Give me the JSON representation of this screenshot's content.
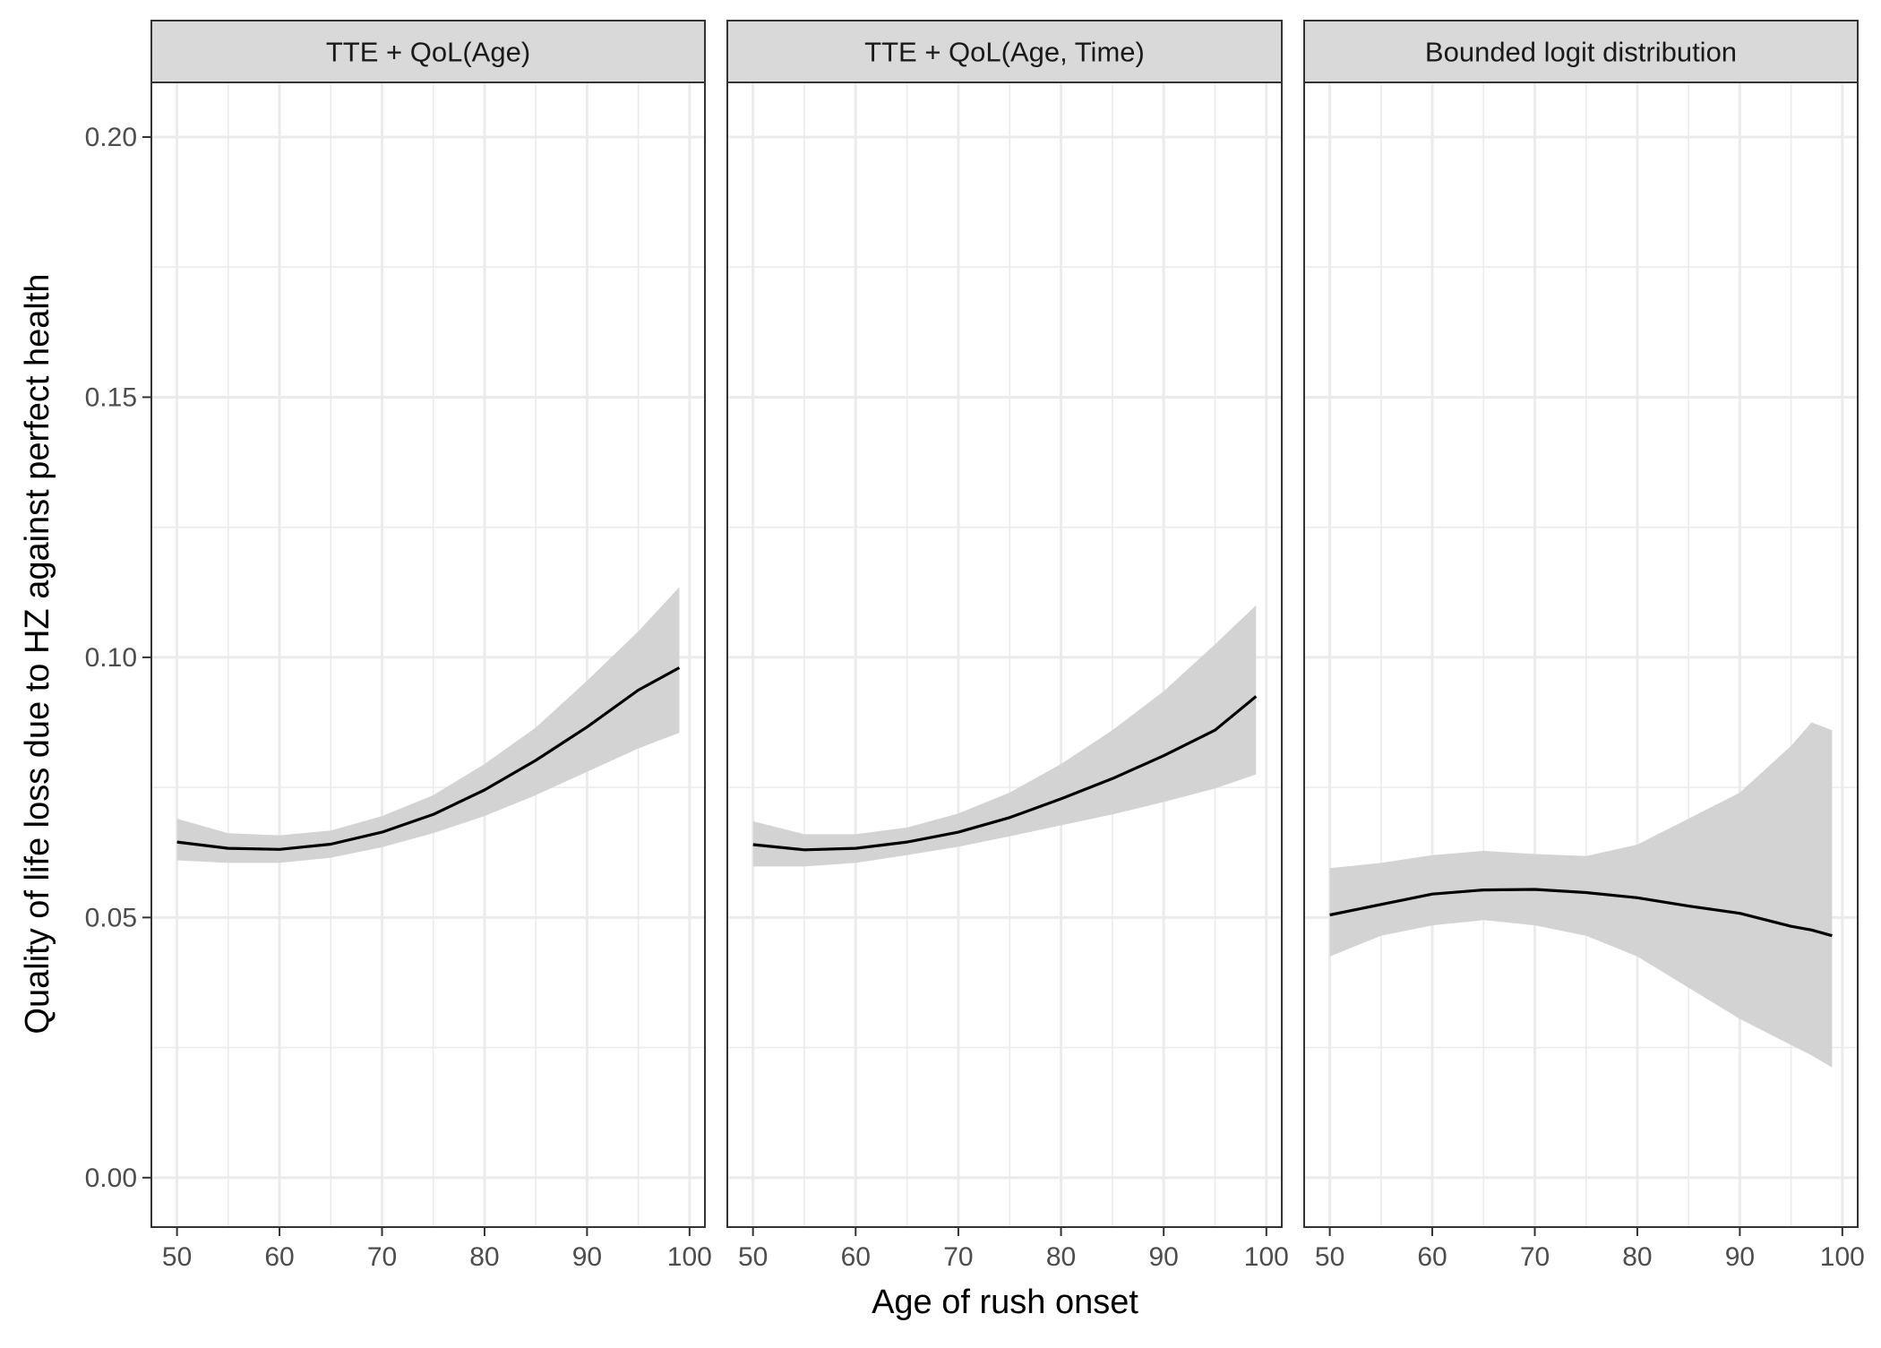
{
  "chart_data": {
    "type": "line",
    "xlabel": "Age of rush onset",
    "ylabel": "Quality of life loss due to HZ against perfect health",
    "xlim": [
      47.5,
      101.5
    ],
    "ylim": [
      -0.0095,
      0.2105
    ],
    "x_ticks": [
      50,
      60,
      70,
      80,
      90,
      100
    ],
    "x_tick_labels": [
      "50",
      "60",
      "70",
      "80",
      "90",
      "100"
    ],
    "y_ticks": [
      0.0,
      0.05,
      0.1,
      0.15,
      0.2
    ],
    "y_tick_labels": [
      "0.00",
      "0.05",
      "0.10",
      "0.15",
      "0.20"
    ],
    "grid": true,
    "colors": {
      "line": "#000000",
      "ribbon": "#d3d3d3",
      "strip": "#d9d9d9",
      "grid": "#ebebeb",
      "border": "#333333",
      "text": "#4d4d4d"
    },
    "panels": [
      {
        "strip": "TTE + QoL(Age)",
        "x": [
          50,
          55,
          60,
          65,
          70,
          75,
          80,
          85,
          90,
          95,
          99
        ],
        "y": [
          0.0645,
          0.0633,
          0.0631,
          0.0641,
          0.0664,
          0.0698,
          0.0745,
          0.0802,
          0.0866,
          0.0937,
          0.098
        ],
        "lower": [
          0.061,
          0.0605,
          0.0605,
          0.0615,
          0.0635,
          0.0662,
          0.0695,
          0.0735,
          0.078,
          0.0825,
          0.0855
        ],
        "upper": [
          0.069,
          0.0662,
          0.0658,
          0.0667,
          0.0695,
          0.0735,
          0.0795,
          0.0865,
          0.0955,
          0.105,
          0.1135
        ]
      },
      {
        "strip": "TTE + QoL(Age, Time)",
        "x": [
          50,
          55,
          60,
          65,
          70,
          75,
          80,
          85,
          90,
          95,
          99
        ],
        "y": [
          0.064,
          0.063,
          0.0633,
          0.0645,
          0.0664,
          0.0692,
          0.0728,
          0.0767,
          0.0811,
          0.086,
          0.0925
        ],
        "lower": [
          0.0598,
          0.0598,
          0.0605,
          0.062,
          0.0636,
          0.0656,
          0.0677,
          0.0698,
          0.0722,
          0.0748,
          0.0775
        ],
        "upper": [
          0.0685,
          0.066,
          0.066,
          0.0673,
          0.07,
          0.074,
          0.0795,
          0.086,
          0.0935,
          0.1025,
          0.11
        ]
      },
      {
        "strip": "Bounded logit distribution",
        "x": [
          50,
          55,
          60,
          65,
          70,
          75,
          80,
          85,
          90,
          95,
          97,
          99
        ],
        "y": [
          0.0505,
          0.0525,
          0.0545,
          0.0553,
          0.0554,
          0.0548,
          0.0538,
          0.0522,
          0.0508,
          0.0483,
          0.0476,
          0.0465
        ],
        "lower": [
          0.0425,
          0.0465,
          0.0485,
          0.0495,
          0.0485,
          0.0465,
          0.0425,
          0.0365,
          0.0305,
          0.0255,
          0.0235,
          0.0212
        ],
        "upper": [
          0.0595,
          0.0605,
          0.062,
          0.0628,
          0.0622,
          0.0618,
          0.064,
          0.069,
          0.074,
          0.083,
          0.0875,
          0.086
        ]
      }
    ]
  }
}
